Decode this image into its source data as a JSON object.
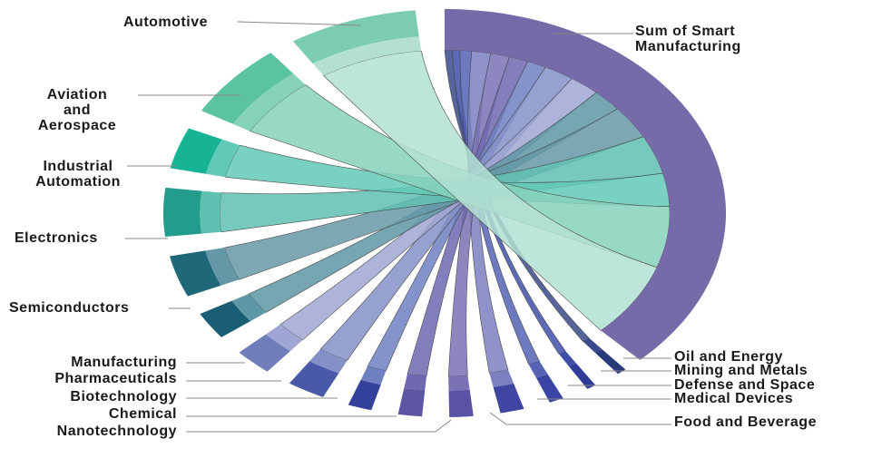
{
  "chart_data": {
    "type": "chord",
    "title": "",
    "hub": {
      "name": "Sum of Smart Manufacturing",
      "color": "#766aa8"
    },
    "series": [
      {
        "name": "Oil and Energy",
        "value": 2,
        "color": "#283a7a",
        "chord": "#3a4a8a"
      },
      {
        "name": "Mining and Metals",
        "value": 2,
        "color": "#2f3c98",
        "chord": "#4050a8"
      },
      {
        "name": "Defense and Space",
        "value": 3,
        "color": "#3a44a5",
        "chord": "#5563b5"
      },
      {
        "name": "Medical Devices",
        "value": 5,
        "color": "#3f45a0",
        "chord": "#7b80c0"
      },
      {
        "name": "Food and Beverage",
        "value": 5,
        "color": "#5a53a5",
        "chord": "#7a72b4"
      },
      {
        "name": "Nanotechnology",
        "value": 5,
        "color": "#5d56a3",
        "chord": "#6d68b0"
      },
      {
        "name": "Chemical",
        "value": 5,
        "color": "#34419a",
        "chord": "#6f80c2"
      },
      {
        "name": "Biotechnology",
        "value": 8,
        "color": "#4a58a8",
        "chord": "#8590c8"
      },
      {
        "name": "Pharmaceuticals",
        "value": 8,
        "color": "#6f7dba",
        "chord": "#a0a6d4"
      },
      {
        "name": "Manufacturing",
        "value": 8,
        "color": "#1a5e75",
        "chord": "#5e97a5"
      },
      {
        "name": "Semiconductors",
        "value": 12,
        "color": "#1f6879",
        "chord": "#6598a6"
      },
      {
        "name": "Electronics",
        "value": 14,
        "color": "#229d8c",
        "chord": "#60c0b2"
      },
      {
        "name": "Industrial Automation",
        "value": 12,
        "color": "#16b394",
        "chord": "#62c9b6"
      },
      {
        "name": "Aviation and Aerospace",
        "value": 22,
        "color": "#5bc2a2",
        "chord": "#86d2bb"
      },
      {
        "name": "Automotive",
        "value": 27,
        "color": "#7ccbb3",
        "chord": "#b3e0d3"
      }
    ]
  },
  "labels": {
    "hub": [
      "Sum of Smart",
      "Manufacturing"
    ],
    "automotive": "Automotive",
    "aviation": [
      "Aviation",
      "and",
      "Aerospace"
    ],
    "industrial": [
      "Industrial",
      "Automation"
    ],
    "electronics": "Electronics",
    "semiconductors": "Semiconductors",
    "manufacturing": "Manufacturing",
    "pharmaceuticals": "Pharmaceuticals",
    "biotechnology": "Biotechnology",
    "chemical": "Chemical",
    "nanotechnology": "Nanotechnology",
    "oil": "Oil and Energy",
    "mining": "Mining and Metals",
    "defense": "Defense and Space",
    "medical": "Medical Devices",
    "food": "Food and Beverage"
  }
}
